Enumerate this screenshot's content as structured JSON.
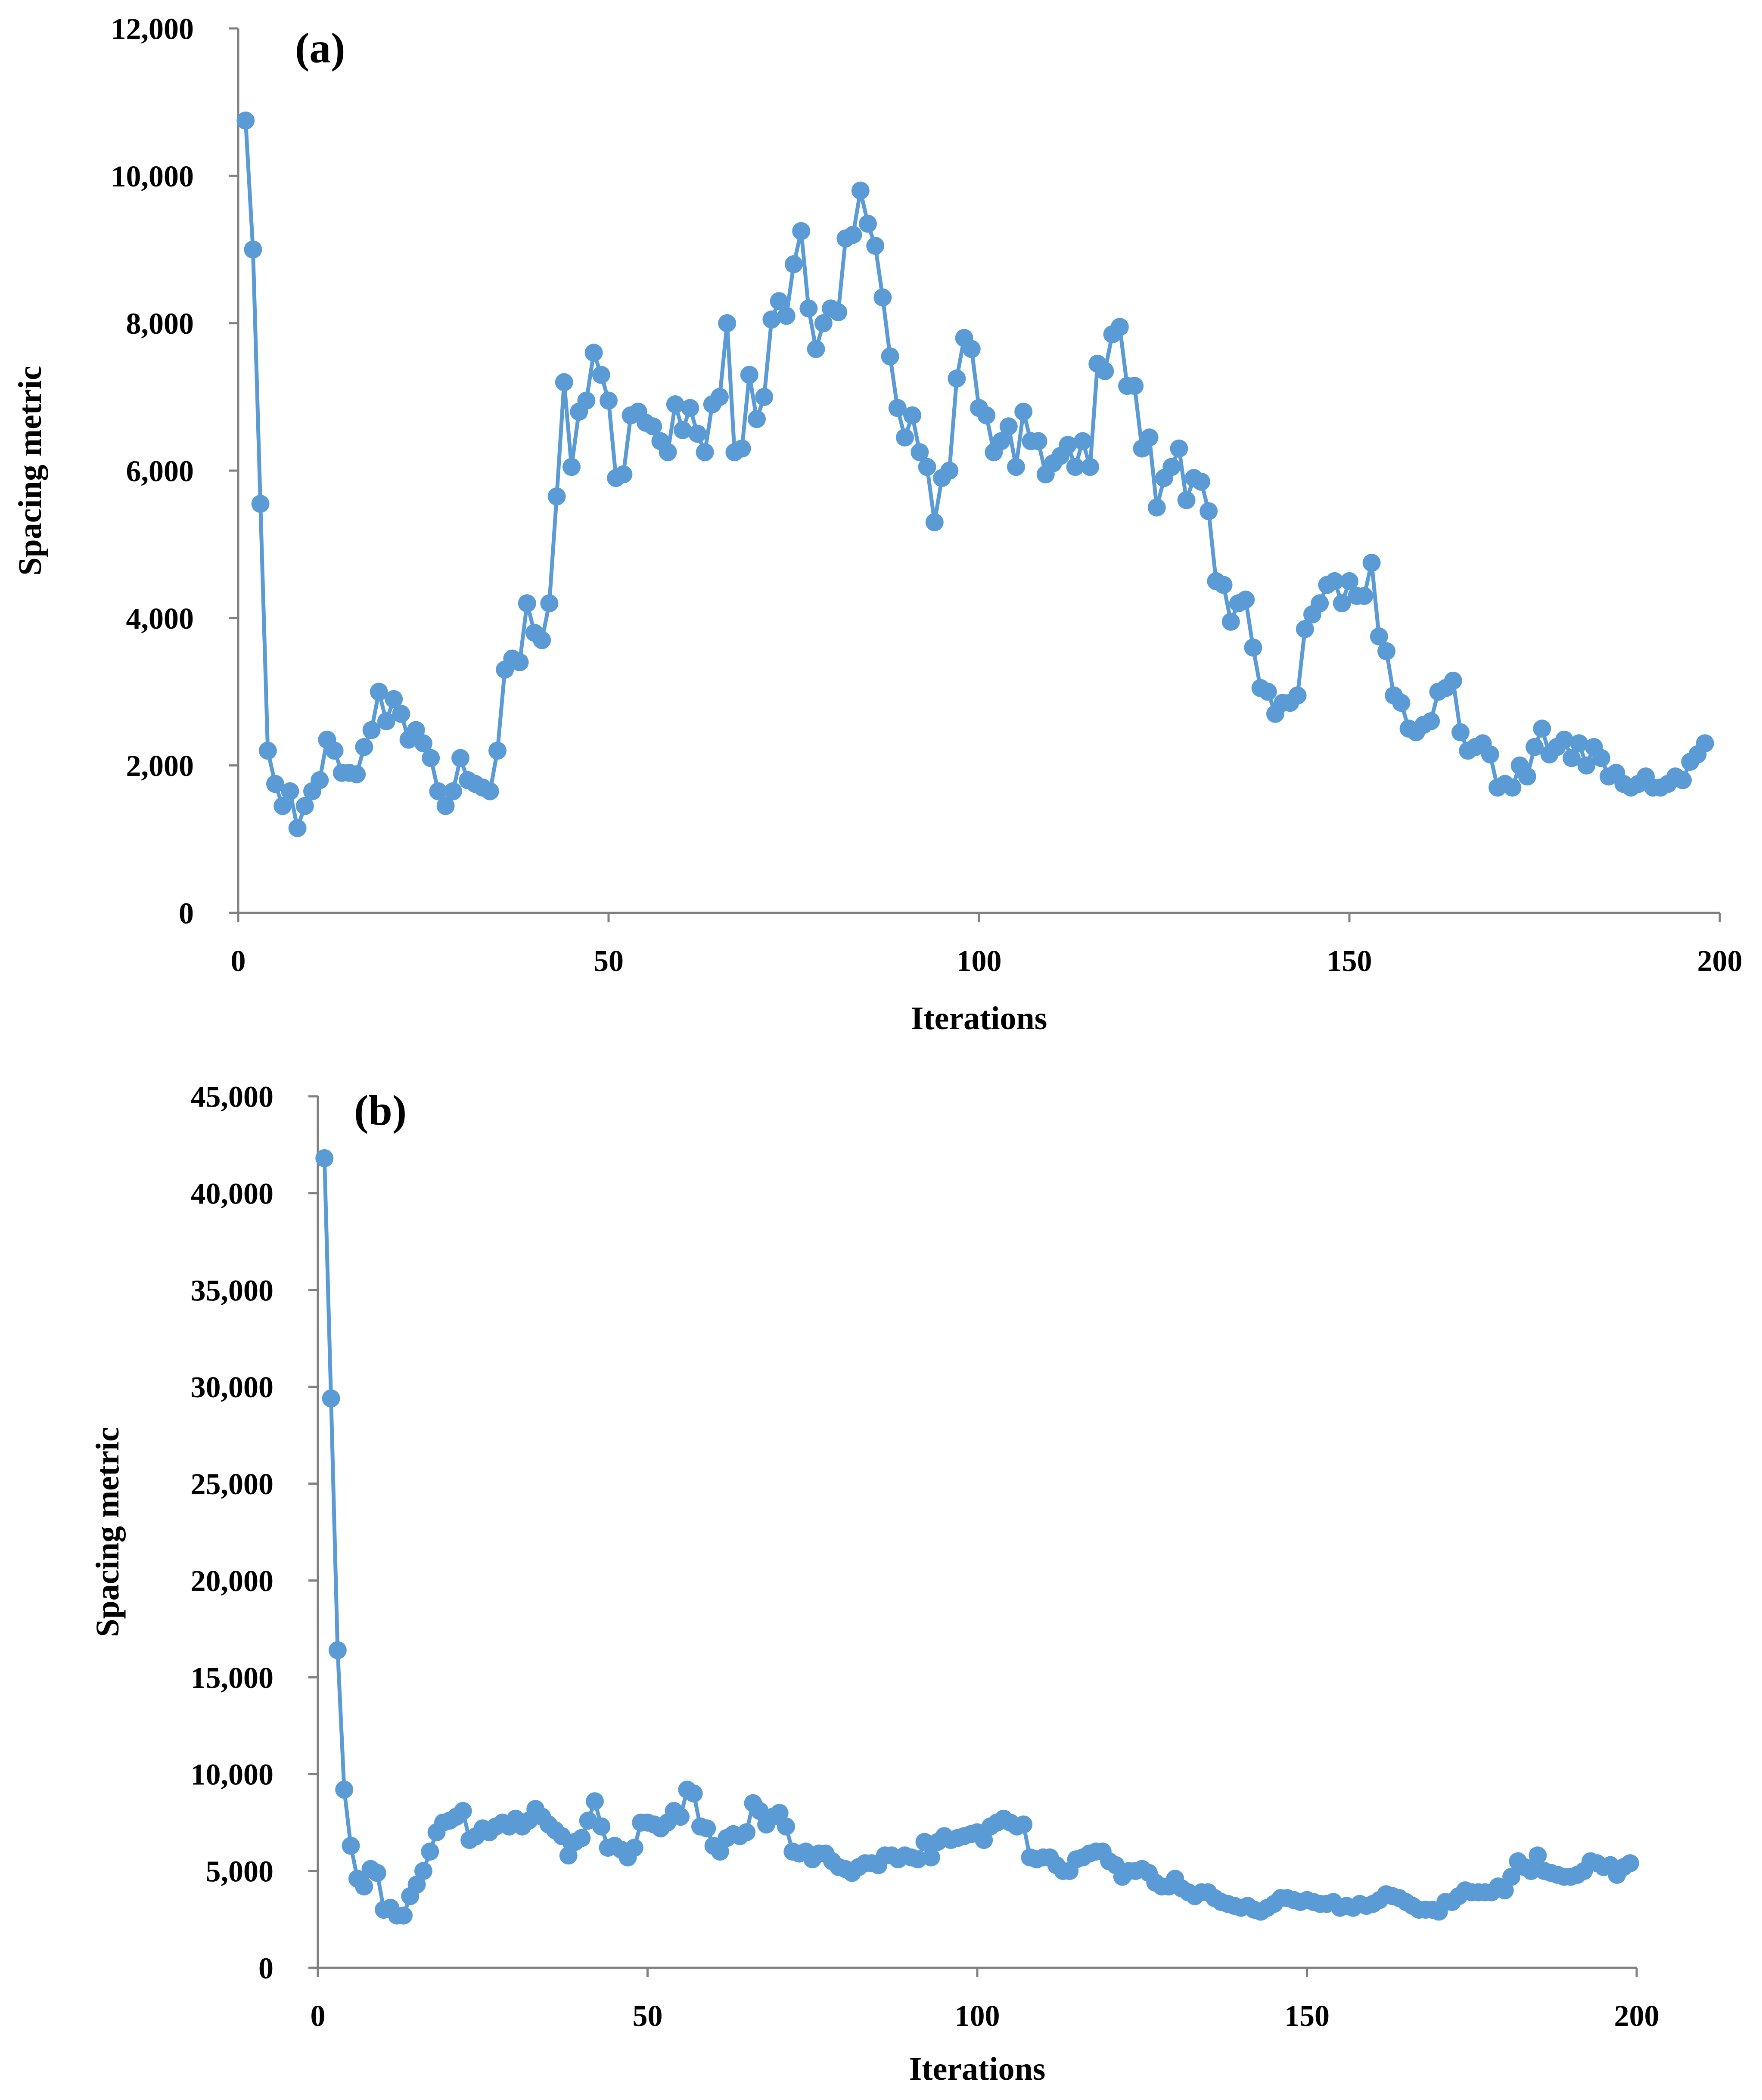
{
  "chart_data": [
    {
      "type": "line",
      "panel_label": "(a)",
      "xlabel": "Iterations",
      "ylabel": "Spacing metric",
      "xlim": [
        0,
        200
      ],
      "ylim": [
        0,
        12000
      ],
      "x_ticks": [
        0,
        50,
        100,
        150,
        200
      ],
      "x_tick_labels": [
        "0",
        "50",
        "100",
        "150",
        "200"
      ],
      "y_ticks": [
        0,
        2000,
        4000,
        6000,
        8000,
        10000,
        12000
      ],
      "y_tick_labels": [
        "0",
        "2,000",
        "4,000",
        "6,000",
        "8,000",
        "10,000",
        "12,000"
      ],
      "grid": false,
      "series": [
        {
          "name": "Spacing metric",
          "color": "#5B9BD5",
          "x_start": 1,
          "x_step": 1,
          "values": [
            10750,
            9000,
            5550,
            2200,
            1750,
            1450,
            1650,
            1150,
            1450,
            1650,
            1800,
            2350,
            2200,
            1900,
            1900,
            1880,
            2250,
            2480,
            3000,
            2600,
            2900,
            2700,
            2350,
            2480,
            2300,
            2100,
            1650,
            1450,
            1650,
            2100,
            1800,
            1750,
            1700,
            1650,
            2200,
            3300,
            3450,
            3400,
            4200,
            3800,
            3700,
            4200,
            5650,
            7200,
            6050,
            6800,
            6950,
            7600,
            7300,
            6950,
            5900,
            5950,
            6750,
            6800,
            6650,
            6600,
            6400,
            6250,
            6900,
            6550,
            6850,
            6500,
            6250,
            6900,
            7000,
            8000,
            6250,
            6300,
            7300,
            6700,
            7000,
            8050,
            8300,
            8100,
            8800,
            9250,
            8200,
            7650,
            8000,
            8200,
            8150,
            9150,
            9200,
            9800,
            9350,
            9050,
            8350,
            7550,
            6850,
            6450,
            6750,
            6250,
            6050,
            5300,
            5900,
            6000,
            7250,
            7800,
            7650,
            6850,
            6750,
            6250,
            6400,
            6600,
            6050,
            6800,
            6400,
            6400,
            5950,
            6100,
            6200,
            6350,
            6050,
            6400,
            6050,
            7450,
            7350,
            7850,
            7950,
            7150,
            7150,
            6300,
            6450,
            5500,
            5900,
            6050,
            6300,
            5600,
            5900,
            5850,
            5450,
            4500,
            4450,
            3950,
            4200,
            4250,
            3600,
            3050,
            3000,
            2700,
            2850,
            2850,
            2950,
            3850,
            4050,
            4200,
            4450,
            4500,
            4200,
            4500,
            4300,
            4300,
            4750,
            3750,
            3550,
            2950,
            2850,
            2500,
            2450,
            2550,
            2600,
            3000,
            3050,
            3150,
            2450,
            2200,
            2250,
            2300,
            2150,
            1700,
            1750,
            1700,
            2000,
            1850,
            2250,
            2500,
            2150,
            2250,
            2350,
            2100,
            2300,
            2000,
            2250,
            2100,
            1850,
            1900,
            1750,
            1700,
            1750,
            1850,
            1700,
            1700,
            1750,
            1850,
            1800,
            2050,
            2150,
            2300
          ]
        }
      ]
    },
    {
      "type": "line",
      "panel_label": "(b)",
      "xlabel": "Iterations",
      "ylabel": "Spacing metric",
      "xlim": [
        0,
        200
      ],
      "ylim": [
        0,
        45000
      ],
      "x_ticks": [
        0,
        50,
        100,
        150,
        200
      ],
      "x_tick_labels": [
        "0",
        "50",
        "100",
        "150",
        "200"
      ],
      "y_ticks": [
        0,
        5000,
        10000,
        15000,
        20000,
        25000,
        30000,
        35000,
        40000,
        45000
      ],
      "y_tick_labels": [
        "0",
        "5,000",
        "10,000",
        "15,000",
        "20,000",
        "25,000",
        "30,000",
        "35,000",
        "40,000",
        "45,000"
      ],
      "grid": false,
      "series": [
        {
          "name": "Spacing metric",
          "color": "#5B9BD5",
          "x_start": 1,
          "x_step": 1,
          "values": [
            41800,
            29400,
            16400,
            9200,
            6300,
            4600,
            4200,
            5100,
            4900,
            3000,
            3100,
            2700,
            2700,
            3700,
            4300,
            5000,
            6000,
            7000,
            7500,
            7600,
            7800,
            8100,
            6600,
            6800,
            7200,
            7000,
            7300,
            7500,
            7300,
            7700,
            7300,
            7600,
            8200,
            7800,
            7400,
            7100,
            6800,
            5800,
            6500,
            6700,
            7600,
            8600,
            7300,
            6200,
            6300,
            6100,
            5700,
            6200,
            7500,
            7500,
            7400,
            7200,
            7500,
            8100,
            7800,
            9200,
            9000,
            7300,
            7200,
            6300,
            6000,
            6700,
            6900,
            6800,
            7000,
            8500,
            8100,
            7400,
            7800,
            8000,
            7300,
            6000,
            5900,
            6000,
            5600,
            5900,
            5900,
            5500,
            5200,
            5100,
            4900,
            5200,
            5400,
            5400,
            5300,
            5800,
            5800,
            5600,
            5800,
            5700,
            5600,
            6500,
            5700,
            6500,
            6800,
            6600,
            6700,
            6800,
            6900,
            7000,
            6600,
            7300,
            7500,
            7700,
            7500,
            7300,
            7400,
            5700,
            5600,
            5700,
            5700,
            5300,
            5000,
            5000,
            5600,
            5700,
            5900,
            6000,
            6000,
            5500,
            5300,
            4700,
            5000,
            5000,
            5100,
            4900,
            4400,
            4200,
            4200,
            4600,
            4100,
            3900,
            3700,
            3900,
            3900,
            3600,
            3400,
            3300,
            3200,
            3100,
            3200,
            3000,
            2900,
            3100,
            3300,
            3600,
            3600,
            3500,
            3400,
            3500,
            3400,
            3300,
            3300,
            3400,
            3100,
            3200,
            3100,
            3300,
            3200,
            3300,
            3500,
            3800,
            3700,
            3600,
            3400,
            3200,
            3000,
            3000,
            3000,
            2900,
            3400,
            3400,
            3700,
            4000,
            3900,
            3900,
            3900,
            3900,
            4200,
            4000,
            4700,
            5500,
            5200,
            5000,
            5800,
            5000,
            4900,
            4800,
            4700,
            4700,
            4800,
            5000,
            5500,
            5400,
            5200,
            5300,
            4800,
            5200,
            5400
          ]
        }
      ]
    }
  ]
}
